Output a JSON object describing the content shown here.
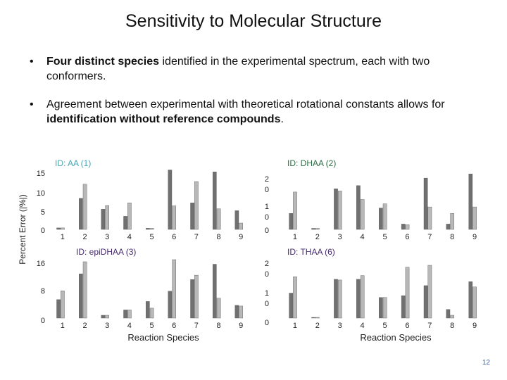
{
  "slide": {
    "title": "Sensitivity to Molecular Structure",
    "page_number": "12",
    "bullets": [
      {
        "pre": "",
        "bold1": "Four distinct species",
        "mid": " identified in the experimental spectrum, each with two conformers.",
        "bold2": "",
        "post": ""
      },
      {
        "pre": "Agreement between experimental with theoretical rotational constants allows for ",
        "bold1": "identification without reference compounds",
        "mid": ".",
        "bold2": "",
        "post": ""
      }
    ]
  },
  "labels": {
    "y_label": "Percent Error (|%|)",
    "x_label": "Reaction Species"
  },
  "colors": {
    "dark_bar": "#707070",
    "light_bar": "#b8b8b8",
    "title_teal": "#45a8b4",
    "title_green": "#2d6e45",
    "title_purple": "#452a6e"
  },
  "chart_data": [
    {
      "type": "bar",
      "title": "ID: AA (1)",
      "categories": [
        "1",
        "2",
        "3",
        "4",
        "5",
        "6",
        "7",
        "8",
        "9"
      ],
      "yticks": [
        "15",
        "10",
        "5",
        "0"
      ],
      "ylim": [
        0,
        16
      ],
      "series": [
        {
          "values": [
            0.4,
            8.3,
            5.4,
            3.5,
            0.3,
            15.9,
            7.1,
            15.4,
            5.0
          ]
        },
        {
          "values": [
            0.4,
            12.1,
            6.4,
            7.1,
            0.3,
            6.3,
            12.8,
            5.5,
            1.7
          ]
        }
      ]
    },
    {
      "type": "bar",
      "title": "ID: DHAA (2)",
      "categories": [
        "1",
        "2",
        "3",
        "4",
        "5",
        "6",
        "7",
        "8",
        "9"
      ],
      "yticks": [
        "2\n0",
        "1\n0",
        "0"
      ],
      "ylim": [
        0,
        28
      ],
      "series": [
        {
          "values": [
            7.5,
            0.5,
            19.0,
            20.5,
            10.0,
            2.5,
            24.0,
            2.5,
            26.0
          ]
        },
        {
          "values": [
            17.5,
            0.5,
            18.0,
            14.0,
            12.0,
            2.2,
            10.5,
            7.5,
            10.5
          ]
        }
      ]
    },
    {
      "type": "bar",
      "title": "ID: epiDHAA (3)",
      "categories": [
        "1",
        "2",
        "3",
        "4",
        "5",
        "6",
        "7",
        "8",
        "9"
      ],
      "yticks": [
        "16",
        "8",
        "0"
      ],
      "ylim": [
        0,
        16.5
      ],
      "series": [
        {
          "values": [
            5.2,
            12.5,
            0.8,
            2.3,
            4.7,
            7.6,
            10.9,
            15.2,
            3.6
          ]
        },
        {
          "values": [
            7.7,
            15.9,
            0.8,
            2.3,
            2.8,
            16.6,
            12.1,
            5.6,
            3.4
          ]
        }
      ]
    },
    {
      "type": "bar",
      "title": "ID: THAA (6)",
      "categories": [
        "1",
        "2",
        "3",
        "4",
        "5",
        "6",
        "7",
        "8",
        "9"
      ],
      "yticks": [
        "2\n0",
        "1\n0",
        "0"
      ],
      "ylim": [
        0,
        25
      ],
      "series": [
        {
          "values": [
            10.7,
            0.3,
            16.6,
            16.6,
            8.8,
            9.6,
            13.9,
            3.7,
            15.6
          ]
        },
        {
          "values": [
            17.7,
            0.3,
            16.3,
            18.2,
            8.8,
            21.8,
            22.6,
            1.2,
            13.3
          ]
        }
      ]
    }
  ]
}
